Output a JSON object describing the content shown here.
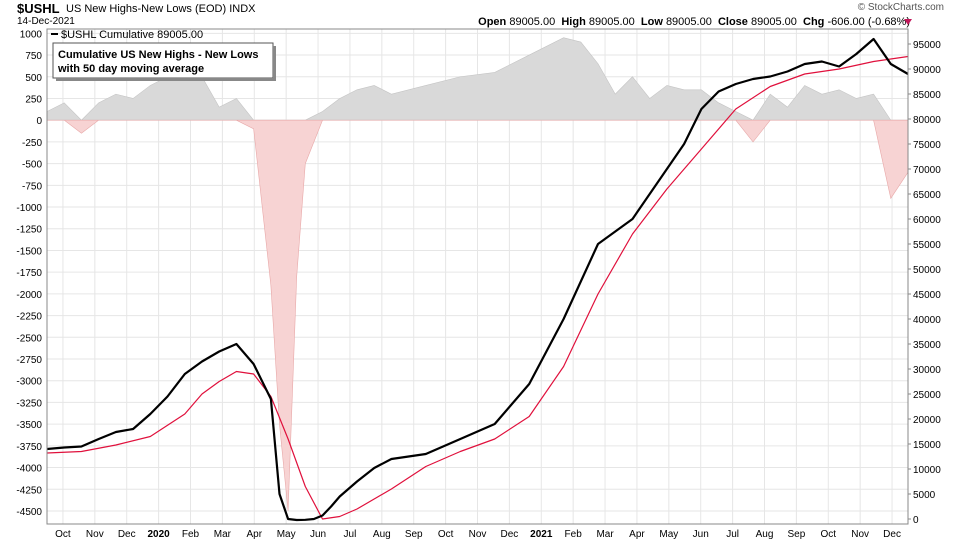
{
  "header": {
    "symbol": "$USHL",
    "name": "US New Highs-New Lows (EOD)",
    "exchange": "INDX",
    "date": "14-Dec-2021",
    "brand": "© StockCharts.com",
    "open_label": "Open",
    "open": "89005.00",
    "high_label": "High",
    "high": "89005.00",
    "low_label": "Low",
    "low": "89005.00",
    "close_label": "Close",
    "close": "89005.00",
    "chg_label": "Chg",
    "chg": "-606.00 (-0.68%)"
  },
  "legend": {
    "series_label": "$USHL Cumulative 89005.00"
  },
  "annotation": {
    "line1": "Cumulative US New Highs - New Lows",
    "line2": "with 50 day moving average"
  },
  "colors": {
    "cumulative": "#000000",
    "moving_average": "#e0103c",
    "positive_fill": "#d9d9d9",
    "negative_fill": "#f7d3d3",
    "grid": "#e6e6e6"
  },
  "chart_data": {
    "type": "line",
    "x_tick_labels": [
      "Oct",
      "Nov",
      "Dec",
      "2020",
      "Feb",
      "Mar",
      "Apr",
      "May",
      "Jun",
      "Jul",
      "Aug",
      "Sep",
      "Oct",
      "Nov",
      "Dec",
      "2021",
      "Feb",
      "Mar",
      "Apr",
      "May",
      "Jun",
      "Jul",
      "Aug",
      "Sep",
      "Oct",
      "Nov",
      "Dec"
    ],
    "y_left": {
      "ylim": [
        -4650,
        1050
      ],
      "tick_labels": [
        "1000",
        "750",
        "500",
        "250",
        "0",
        "-250",
        "-500",
        "-750",
        "-1000",
        "-1250",
        "-1500",
        "-1750",
        "-2000",
        "-2250",
        "-2500",
        "-2750",
        "-3000",
        "-3250",
        "-3500",
        "-3750",
        "-4000",
        "-4250",
        "-4500"
      ]
    },
    "y_right": {
      "ylim": [
        -1000,
        98000
      ],
      "tick_labels": [
        "95000",
        "90000",
        "85000",
        "80000",
        "75000",
        "70000",
        "65000",
        "60000",
        "55000",
        "50000",
        "45000",
        "40000",
        "35000",
        "30000",
        "25000",
        "20000",
        "15000",
        "10000",
        "5000",
        "0"
      ]
    },
    "grid": true,
    "series": [
      {
        "name": "$USHL Cumulative",
        "axis": "right",
        "x": [
          0,
          2,
          4,
          6,
          8,
          10,
          12,
          14,
          16,
          18,
          20,
          22,
          24,
          26,
          27,
          28,
          29,
          30,
          31,
          32,
          33,
          34,
          36,
          38,
          40,
          44,
          48,
          52,
          56,
          60,
          64,
          68,
          72,
          74,
          76,
          78,
          80,
          82,
          84,
          86,
          88,
          90,
          92,
          94,
          96,
          98,
          100
        ],
        "values": [
          14000,
          14300,
          14500,
          16000,
          17400,
          18000,
          21000,
          24500,
          29000,
          31500,
          33500,
          35000,
          31000,
          24000,
          5000,
          0,
          -200,
          -150,
          0,
          700,
          2500,
          4500,
          7500,
          10200,
          12000,
          13000,
          16000,
          19000,
          27000,
          40000,
          55000,
          60000,
          70000,
          75000,
          82000,
          85500,
          87000,
          88000,
          88500,
          89500,
          91000,
          91500,
          90500,
          93000,
          96000,
          91000,
          89005
        ]
      },
      {
        "name": "50 day moving average",
        "axis": "right",
        "x": [
          0,
          4,
          8,
          12,
          16,
          18,
          20,
          22,
          24,
          26,
          28,
          30,
          32,
          34,
          36,
          40,
          44,
          48,
          52,
          56,
          60,
          64,
          68,
          72,
          76,
          80,
          84,
          88,
          92,
          96,
          100
        ],
        "values": [
          13200,
          13500,
          14800,
          16500,
          21000,
          25000,
          27500,
          29500,
          29000,
          24500,
          16000,
          6500,
          0,
          500,
          2000,
          6000,
          10500,
          13500,
          16000,
          20500,
          30500,
          45000,
          57000,
          66000,
          74000,
          82000,
          86500,
          89000,
          90000,
          91500,
          92500
        ]
      },
      {
        "name": "New Highs-New Lows",
        "axis": "left",
        "type": "area",
        "x": [
          0,
          2,
          4,
          6,
          8,
          10,
          12,
          14,
          16,
          18,
          20,
          22,
          24,
          26,
          27,
          28,
          29,
          30,
          32,
          34,
          36,
          38,
          40,
          44,
          48,
          52,
          56,
          60,
          62,
          64,
          66,
          68,
          70,
          72,
          74,
          76,
          78,
          80,
          82,
          84,
          86,
          88,
          90,
          92,
          94,
          96,
          98,
          100
        ],
        "values": [
          100,
          200,
          -150,
          200,
          300,
          250,
          400,
          500,
          550,
          500,
          150,
          250,
          -100,
          -1900,
          -3500,
          -4500,
          -1800,
          -500,
          100,
          250,
          350,
          400,
          300,
          400,
          500,
          550,
          750,
          950,
          900,
          650,
          300,
          500,
          250,
          400,
          350,
          350,
          200,
          100,
          -250,
          300,
          150,
          400,
          300,
          350,
          250,
          300,
          -900,
          -600
        ]
      }
    ]
  }
}
